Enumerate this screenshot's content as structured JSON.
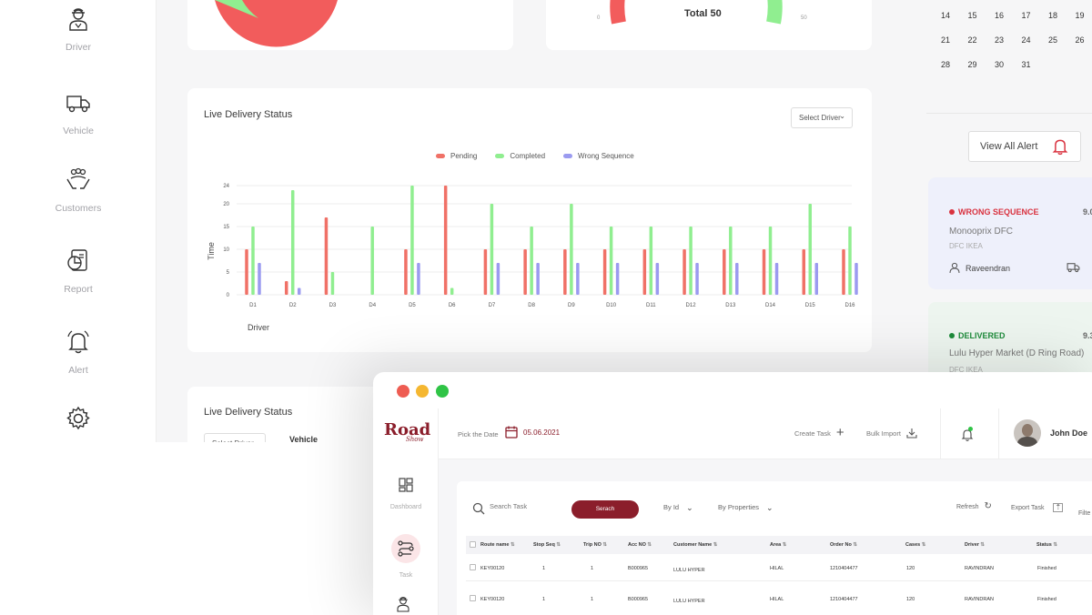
{
  "sidebar": {
    "items": [
      {
        "label": "Driver",
        "icon": "driver-icon"
      },
      {
        "label": "Vehicle",
        "icon": "truck-icon"
      },
      {
        "label": "Customers",
        "icon": "customers-icon"
      },
      {
        "label": "Report",
        "icon": "report-icon"
      },
      {
        "label": "Alert",
        "icon": "bell-icon"
      },
      {
        "label": "Settings",
        "icon": "gear-icon"
      }
    ]
  },
  "gauge": {
    "total_label": "Total 50",
    "min": "0",
    "max": "50"
  },
  "calendar": {
    "rows": [
      [
        "14",
        "15",
        "16",
        "17",
        "18",
        "19"
      ],
      [
        "21",
        "22",
        "23",
        "24",
        "25",
        "26"
      ],
      [
        "28",
        "29",
        "30",
        "31"
      ]
    ]
  },
  "live_status": {
    "title": "Live Delivery Status",
    "select": "Select Driver",
    "second_title": "Live Delivery Status",
    "second_select": "Select Driver",
    "second_col": "Vehicle"
  },
  "chart_data": {
    "type": "bar",
    "title": "",
    "xlabel": "Driver",
    "ylabel": "Time",
    "ylim": [
      0,
      24
    ],
    "yticks": [
      0,
      5,
      10,
      15,
      20,
      24
    ],
    "categories": [
      "D1",
      "D2",
      "D3",
      "D4",
      "D5",
      "D6",
      "D7",
      "D8",
      "D9",
      "D10",
      "D11",
      "D12",
      "D13",
      "D14",
      "D15",
      "D16"
    ],
    "series": [
      {
        "name": "Pending",
        "color": "#f07167",
        "values": [
          10,
          3,
          17,
          0,
          10,
          24,
          10,
          10,
          10,
          10,
          10,
          10,
          10,
          10,
          10,
          10
        ]
      },
      {
        "name": "Completed",
        "color": "#90ee90",
        "values": [
          15,
          23,
          5,
          15,
          24,
          1.5,
          20,
          15,
          20,
          15,
          15,
          15,
          15,
          15,
          20,
          15
        ]
      },
      {
        "name": "Wrong Sequence",
        "color": "#9b9bf0",
        "values": [
          7,
          1.5,
          0,
          0,
          7,
          0,
          7,
          7,
          7,
          7,
          7,
          7,
          7,
          7,
          7,
          7
        ]
      }
    ],
    "legend": "top-center"
  },
  "alerts": {
    "view_all": "View All Alert",
    "items": [
      {
        "status": "WRONG SEQUENCE",
        "time": "9.0",
        "place": "Monooprix DFC",
        "sub": "DFC IKEA",
        "person": "Raveendran",
        "status_color": "#d9323f",
        "bg": "#eef0fb"
      },
      {
        "status": "DELIVERED",
        "time": "9.3",
        "place": "Lulu Hyper Market (D Ring Road)",
        "sub": "DFC IKEA",
        "person": "",
        "status_color": "#1d8b3a",
        "bg": "#edf5ef"
      }
    ]
  },
  "window": {
    "brand_top": "Road",
    "brand_bottom": "Show",
    "pick_date_label": "Pick the Date",
    "date_value": "05.06.2021",
    "create_task": "Create Task",
    "bulk_import": "Bulk Import",
    "user_name": "John Doe",
    "nav": [
      {
        "label": "Dashboard"
      },
      {
        "label": "Task"
      }
    ],
    "search_placeholder": "Search Task",
    "search_btn": "Serach",
    "by_id": "By Id",
    "by_properties": "By Properties",
    "refresh": "Refresh",
    "export_task": "Export Task",
    "filter": "Filte",
    "columns": [
      "Route name",
      "Stop Seq",
      "Trip NO",
      "Acc NO",
      "Customer Name",
      "Area",
      "Order No",
      "Cases",
      "Driver",
      "Status"
    ],
    "rows": [
      [
        "KEY00120",
        "1",
        "1",
        "B000965",
        "LULU HYPER",
        "HILAL",
        "1210404477",
        "120",
        "RAVINDRAN",
        "Finished"
      ],
      [
        "KEY00120",
        "1",
        "1",
        "B000965",
        "LULU HYPER",
        "HILAL",
        "1210404477",
        "120",
        "RAVINDRAN",
        "Finished"
      ]
    ]
  }
}
